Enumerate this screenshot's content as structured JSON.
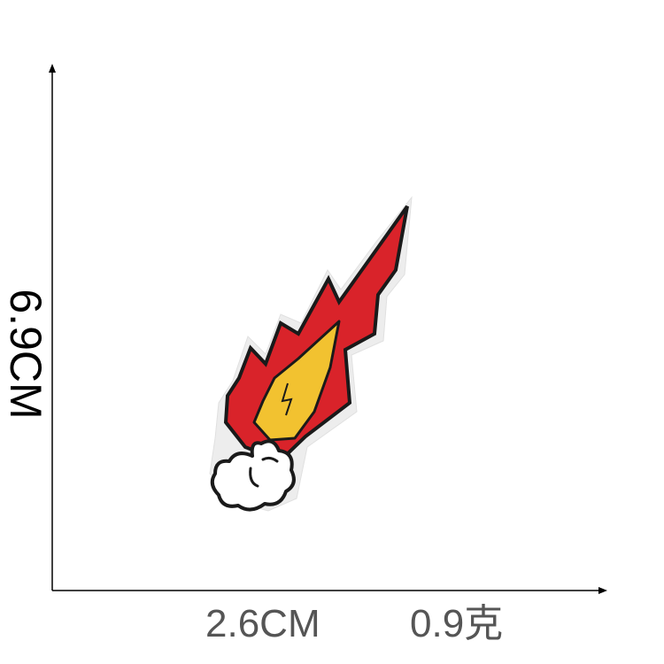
{
  "dimensions": {
    "height": "6.9CM",
    "width": "2.6CM",
    "weight": "0.9克"
  },
  "colors": {
    "axis": "#000000",
    "label_text": "#555555",
    "flame_red": "#d9232a",
    "flame_yellow": "#f2c230",
    "outline": "#1a1a1a",
    "patch_border": "#ededed"
  },
  "product": {
    "icon": "fireball-cloud-patch-icon"
  }
}
